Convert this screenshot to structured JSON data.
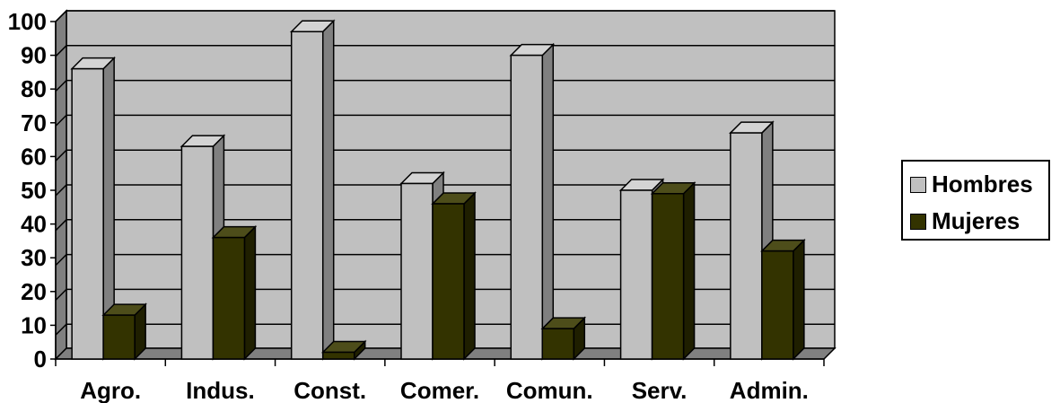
{
  "chart_data": {
    "type": "bar",
    "categories": [
      "Agro.",
      "Indus.",
      "Const.",
      "Comer.",
      "Comun.",
      "Serv.",
      "Admin."
    ],
    "series": [
      {
        "name": "Hombres",
        "values": [
          86,
          63,
          97,
          52,
          90,
          50,
          67
        ],
        "color": "#c0c0c0",
        "side": "#808080",
        "top": "#d4d4d4"
      },
      {
        "name": "Mujeres",
        "values": [
          13,
          36,
          2,
          46,
          9,
          49,
          32
        ],
        "color": "#333300",
        "side": "#1f1f00",
        "top": "#4d4d1a"
      }
    ],
    "ylim": [
      0,
      100
    ],
    "yticks": [
      0,
      10,
      20,
      30,
      40,
      50,
      60,
      70,
      80,
      90,
      100
    ],
    "grid": true,
    "legend_position": "right",
    "colors": {
      "plot_wall": "#c0c0c0",
      "floor": "#808080",
      "wall_side": "#808080"
    }
  }
}
